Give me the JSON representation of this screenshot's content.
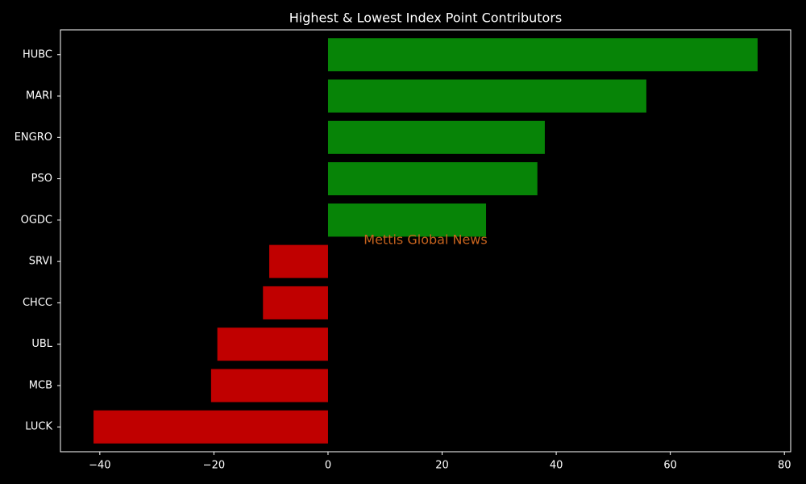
{
  "chart_data": {
    "type": "barh",
    "title": "Highest & Lowest Index Point Contributors",
    "watermark": "Mettis Global News",
    "categories": [
      "HUBC",
      "MARI",
      "ENGRO",
      "PSO",
      "OGDC",
      "SRVI",
      "CHCC",
      "UBL",
      "MCB",
      "LUCK"
    ],
    "values": [
      75.3,
      55.8,
      38.0,
      36.7,
      27.7,
      -10.3,
      -11.4,
      -19.4,
      -20.5,
      -41.1
    ],
    "colors": [
      "#078407",
      "#078407",
      "#078407",
      "#078407",
      "#078407",
      "#c00000",
      "#c00000",
      "#c00000",
      "#c00000",
      "#c00000"
    ],
    "xlim": [
      -46.9,
      81.1
    ],
    "xticks": [
      {
        "value": -40,
        "label": "−40"
      },
      {
        "value": -20,
        "label": "−20"
      },
      0,
      20,
      40,
      60,
      80
    ],
    "grid": false
  }
}
